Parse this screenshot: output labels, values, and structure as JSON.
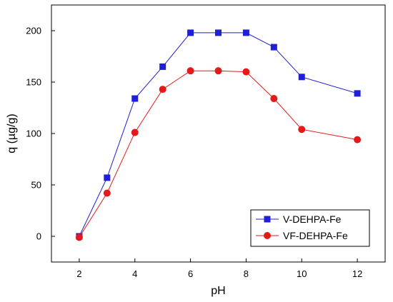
{
  "chart_data": {
    "type": "line",
    "xlabel": "pH",
    "ylabel": "q (µg/g)",
    "xlim": [
      1,
      13
    ],
    "ylim": [
      -25,
      225
    ],
    "xticks": [
      2,
      4,
      6,
      8,
      10,
      12
    ],
    "yticks": [
      0,
      50,
      100,
      150,
      200
    ],
    "grid": false,
    "legend_position": "bottom-right",
    "x": [
      2,
      3,
      4,
      5,
      6,
      7,
      8,
      9,
      10,
      12
    ],
    "series": [
      {
        "name": "V-DEHPA-Fe",
        "marker": "square",
        "color": "#1f1fd6",
        "values": [
          0,
          57,
          134,
          165,
          198,
          198,
          198,
          184,
          155,
          139
        ]
      },
      {
        "name": "VF-DEHPA-Fe",
        "marker": "circle",
        "color": "#e41a1a",
        "values": [
          -1,
          42,
          101,
          143,
          161,
          161,
          160,
          134,
          104,
          94
        ]
      }
    ]
  }
}
